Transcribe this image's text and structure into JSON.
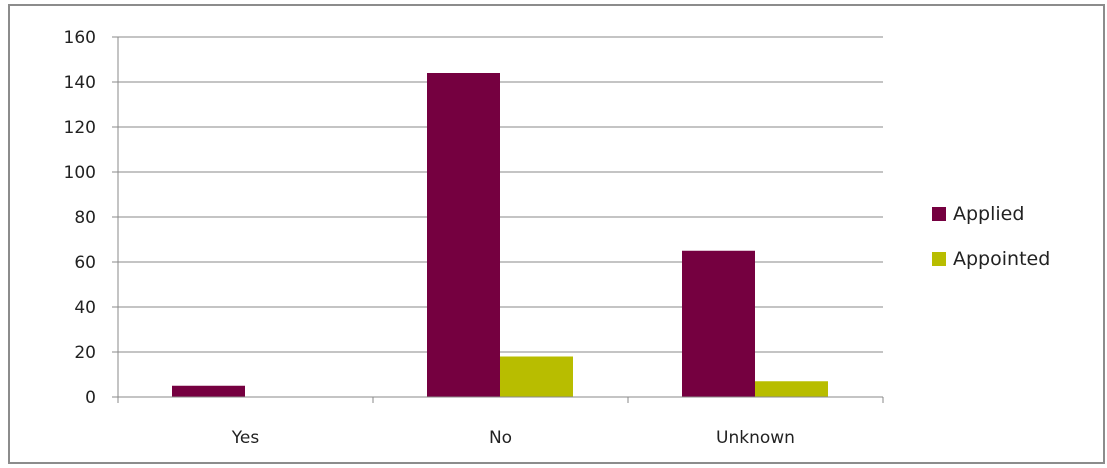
{
  "chart_data": {
    "type": "bar",
    "categories": [
      "Yes",
      "No",
      "Unknown"
    ],
    "series": [
      {
        "name": "Applied",
        "values": [
          5,
          144,
          65
        ],
        "color": "#750040"
      },
      {
        "name": "Appointed",
        "values": [
          0,
          18,
          7
        ],
        "color": "#b8bd00"
      }
    ],
    "ylim": [
      0,
      160
    ],
    "yticks": [
      0,
      20,
      40,
      60,
      80,
      100,
      120,
      140,
      160
    ],
    "grid": true,
    "legend": "right"
  }
}
